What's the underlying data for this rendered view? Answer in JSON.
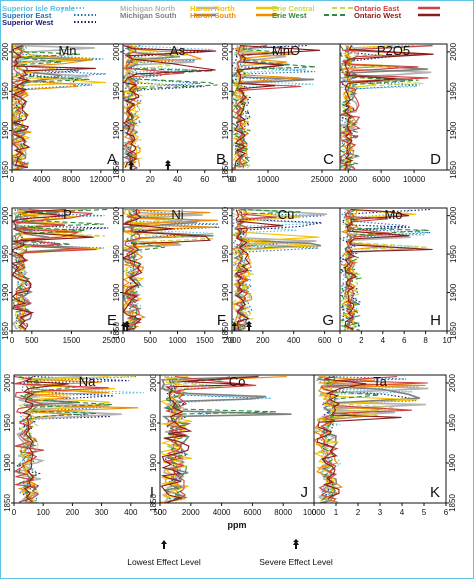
{
  "colors": {
    "Superior Isle Royale": "#5bc0de",
    "Superior East": "#1f78b4",
    "Superior West": "#1a1a6e",
    "Michigan North": "#b3b3b3",
    "Michigan South": "#808080",
    "Huron North": "#f5c400",
    "Huron South": "#f08c00",
    "Erie Central": "#c9d84a",
    "Erie West": "#2e8b3d",
    "Ontario East": "#d04040",
    "Ontario West": "#8b1a1a"
  },
  "legend": [
    {
      "name": "Superior Isle Royale",
      "style": "dot"
    },
    {
      "name": "Superior East",
      "style": "dot"
    },
    {
      "name": "Superior West",
      "style": "dot"
    },
    {
      "name": "Michigan North",
      "style": "solid"
    },
    {
      "name": "Michigan South",
      "style": "solid"
    },
    {
      "name": "Huron North",
      "style": "solid"
    },
    {
      "name": "Huron South",
      "style": "solid"
    },
    {
      "name": "Erie Central",
      "style": "dash"
    },
    {
      "name": "Erie West",
      "style": "dash"
    },
    {
      "name": "Ontario East",
      "style": "solid"
    },
    {
      "name": "Ontario West",
      "style": "solid"
    }
  ],
  "x_axis_label": "ppm",
  "footnotes": {
    "lowest": "Lowest Effect Level",
    "severe": "Severe Effect Level"
  },
  "chart_data": [
    {
      "type": "line",
      "title": "Mn",
      "letter": "A",
      "xlim": [
        0,
        15000
      ],
      "xticks": [
        0,
        4000,
        8000,
        12000
      ],
      "ylim": [
        1850,
        2010
      ],
      "yticks": [
        1850,
        1900,
        1950,
        2000
      ]
    },
    {
      "type": "line",
      "title": "As",
      "letter": "B",
      "xlim": [
        0,
        80
      ],
      "xticks": [
        0,
        20,
        40,
        60,
        80
      ],
      "ylim": [
        1850,
        2010
      ],
      "yticks": [
        1850,
        1900,
        1950,
        2000
      ],
      "lel": 6,
      "sel": 33
    },
    {
      "type": "line",
      "title": "MnO",
      "letter": "C",
      "xlim": [
        0,
        30000
      ],
      "xticks": [
        0,
        10000,
        25000
      ],
      "ylim": [
        1850,
        2010
      ],
      "yticks": [
        1850,
        1900,
        1950,
        2000
      ]
    },
    {
      "type": "line",
      "title": "P2O5",
      "letter": "D",
      "xlim": [
        1000,
        14000
      ],
      "xticks": [
        2000,
        6000,
        10000
      ],
      "ylim": [
        1850,
        2010
      ],
      "yticks": [
        1850,
        1900,
        1950,
        2000
      ]
    },
    {
      "type": "line",
      "title": "P",
      "letter": "E",
      "xlim": [
        0,
        2800
      ],
      "xticks": [
        0,
        500,
        1500,
        2500
      ],
      "ylim": [
        1850,
        2010
      ],
      "yticks": [
        1850,
        1900,
        1950,
        2000
      ]
    },
    {
      "type": "line",
      "title": "Ni",
      "letter": "F",
      "xlim": [
        0,
        2000
      ],
      "xticks": [
        0,
        500,
        1000,
        1500,
        2000
      ],
      "ylim": [
        1850,
        2010
      ],
      "yticks": [
        1850,
        1900,
        1950,
        2000
      ],
      "lel": 16,
      "sel": 75
    },
    {
      "type": "line",
      "title": "Cu",
      "letter": "G",
      "xlim": [
        0,
        700
      ],
      "xticks": [
        0,
        200,
        400,
        600
      ],
      "ylim": [
        1850,
        2010
      ],
      "yticks": [
        1850,
        1900,
        1950,
        2000
      ],
      "lel": 16,
      "sel": 110
    },
    {
      "type": "line",
      "title": "Mo",
      "letter": "H",
      "xlim": [
        0,
        10
      ],
      "xticks": [
        0,
        2,
        4,
        6,
        8,
        10
      ],
      "ylim": [
        1850,
        2010
      ],
      "yticks": [
        1850,
        1900,
        1950,
        2000
      ]
    },
    {
      "type": "line",
      "title": "Na",
      "letter": "I",
      "xlim": [
        0,
        500
      ],
      "xticks": [
        0,
        100,
        200,
        300,
        400,
        500
      ],
      "ylim": [
        1850,
        2010
      ],
      "yticks": [
        1850,
        1900,
        1950,
        2000
      ]
    },
    {
      "type": "line",
      "title": "Co",
      "letter": "J",
      "xlim": [
        0,
        10000
      ],
      "xticks": [
        0,
        2000,
        4000,
        6000,
        8000,
        10000
      ],
      "ylim": [
        1850,
        2010
      ],
      "yticks": [
        1850,
        1900,
        1950,
        2000
      ]
    },
    {
      "type": "line",
      "title": "Ta",
      "letter": "K",
      "xlim": [
        0,
        6
      ],
      "xticks": [
        0,
        1,
        2,
        3,
        4,
        5,
        6
      ],
      "ylim": [
        1850,
        2010
      ],
      "yticks": [
        1850,
        1900,
        1950,
        2000
      ]
    }
  ]
}
